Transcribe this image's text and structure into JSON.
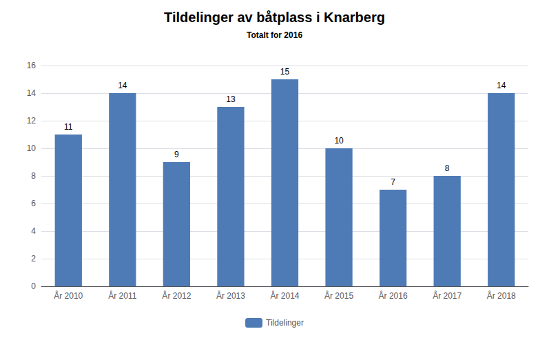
{
  "chart_data": {
    "type": "bar",
    "title": "Tildelinger av båtplass i Knarberg",
    "subtitle": "Totalt for 2016",
    "categories": [
      "År 2010",
      "År 2011",
      "År 2012",
      "År 2013",
      "År 2014",
      "År 2015",
      "År 2016",
      "År 2017",
      "År 2018"
    ],
    "series": [
      {
        "name": "Tildelinger",
        "color": "#4E7BB5",
        "values": [
          11,
          14,
          9,
          13,
          15,
          10,
          7,
          8,
          14
        ]
      }
    ],
    "ylim": [
      0,
      16
    ],
    "yticks": [
      0,
      2,
      4,
      6,
      8,
      10,
      12,
      14,
      16
    ],
    "grid": true,
    "legend": "bottom",
    "data_labels": true
  }
}
